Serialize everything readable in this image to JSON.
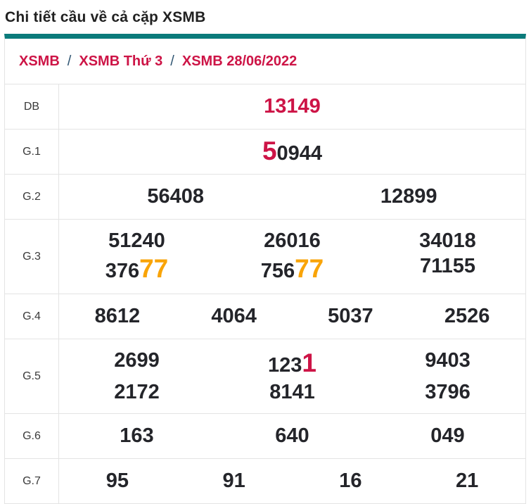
{
  "page": {
    "title": "Chi tiết cầu về cả cặp XSMB"
  },
  "colors": {
    "accent_teal": "#0b7b7b",
    "accent_red": "#cd1446",
    "accent_orange": "#f9a408",
    "value_text": "#24252a",
    "label_text": "#3a3a3a",
    "border": "#e4e4e4",
    "breadcrumb_separator_color": "#2f5572"
  },
  "breadcrumb": {
    "separator": "/",
    "items": [
      {
        "label": "XSMB"
      },
      {
        "label": "XSMB Thứ 3"
      },
      {
        "label": "XSMB 28/06/2022"
      }
    ]
  },
  "table": {
    "rows": [
      {
        "label": "DB",
        "lines": [
          [
            [
              {
                "t": "13149",
                "s": "red"
              }
            ]
          ]
        ]
      },
      {
        "label": "G.1",
        "lines": [
          [
            [
              {
                "t": "5",
                "s": "red-big"
              },
              {
                "t": "0944"
              }
            ]
          ]
        ]
      },
      {
        "label": "G.2",
        "lines": [
          [
            [
              {
                "t": "56408"
              }
            ],
            [
              {
                "t": "12899"
              }
            ]
          ]
        ]
      },
      {
        "label": "G.3",
        "lines": [
          [
            [
              {
                "t": "51240"
              }
            ],
            [
              {
                "t": "26016"
              }
            ],
            [
              {
                "t": "34018"
              }
            ]
          ],
          [
            [
              {
                "t": "376"
              },
              {
                "t": "77",
                "s": "orange-big"
              }
            ],
            [
              {
                "t": "756"
              },
              {
                "t": "77",
                "s": "orange-big"
              }
            ],
            [
              {
                "t": "71155"
              }
            ]
          ]
        ]
      },
      {
        "label": "G.4",
        "lines": [
          [
            [
              {
                "t": "8612"
              }
            ],
            [
              {
                "t": "4064"
              }
            ],
            [
              {
                "t": "5037"
              }
            ],
            [
              {
                "t": "2526"
              }
            ]
          ]
        ]
      },
      {
        "label": "G.5",
        "lines": [
          [
            [
              {
                "t": "2699"
              }
            ],
            [
              {
                "t": "123"
              },
              {
                "t": "1",
                "s": "red-big"
              }
            ],
            [
              {
                "t": "9403"
              }
            ]
          ],
          [
            [
              {
                "t": "2172"
              }
            ],
            [
              {
                "t": "8141"
              }
            ],
            [
              {
                "t": "3796"
              }
            ]
          ]
        ]
      },
      {
        "label": "G.6",
        "lines": [
          [
            [
              {
                "t": "163"
              }
            ],
            [
              {
                "t": "640"
              }
            ],
            [
              {
                "t": "049"
              }
            ]
          ]
        ]
      },
      {
        "label": "G.7",
        "lines": [
          [
            [
              {
                "t": "95"
              }
            ],
            [
              {
                "t": "91"
              }
            ],
            [
              {
                "t": "16"
              }
            ],
            [
              {
                "t": "21"
              }
            ]
          ]
        ]
      }
    ]
  }
}
